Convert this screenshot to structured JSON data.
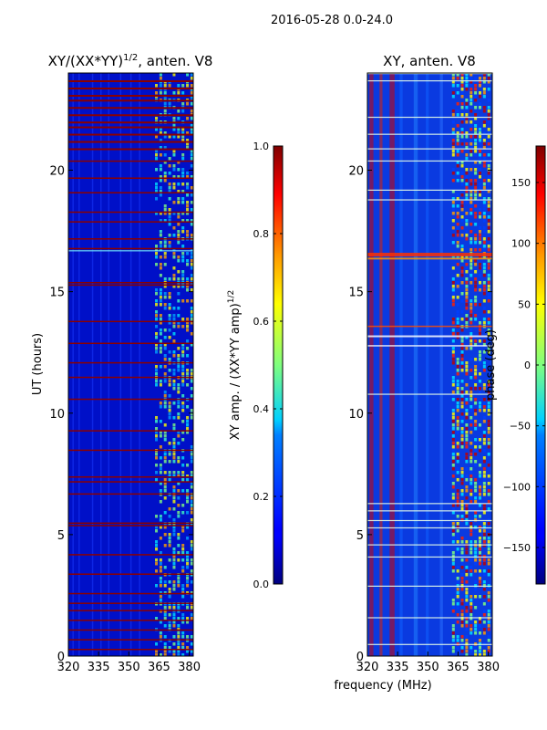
{
  "chart_data": {
    "suptitle": "2016-05-28 0.0-24.0",
    "type": "heatmap",
    "xlabel": "frequency (MHz)",
    "panels": [
      {
        "id": "amp",
        "title_main": "XY/(XX*YY)",
        "title_sup": "1/2",
        "title_rest": ", anten. V8",
        "x_range": [
          320,
          382
        ],
        "x_ticks": [
          320,
          335,
          350,
          365,
          380
        ],
        "y_range": [
          0,
          24
        ],
        "y_ticks": [
          0,
          5,
          10,
          15,
          20
        ],
        "ylabel": "UT (hours)",
        "colorbar": {
          "label_main": "XY amp. / (XX*YY amp)",
          "label_sup": "1/2",
          "range": [
            0.0,
            1.0
          ],
          "ticks": [
            "0.0",
            "0.2",
            "0.4",
            "0.6",
            "0.8",
            "1.0"
          ],
          "tick_values": [
            0.0,
            0.2,
            0.4,
            0.6,
            0.8,
            1.0
          ]
        }
      },
      {
        "id": "phase",
        "title_main": "XY, anten. V8",
        "x_range": [
          320,
          382
        ],
        "x_ticks": [
          320,
          335,
          350,
          365,
          380
        ],
        "y_range": [
          0,
          24
        ],
        "y_ticks": [
          0,
          5,
          10,
          15,
          20
        ],
        "colorbar": {
          "label_main": "phase (deg)",
          "range": [
            -180,
            180
          ],
          "ticks": [
            "−150",
            "−100",
            "−50",
            "0",
            "50",
            "100",
            "150"
          ],
          "tick_values": [
            -150,
            -100,
            -50,
            0,
            50,
            100,
            150
          ]
        }
      }
    ]
  }
}
